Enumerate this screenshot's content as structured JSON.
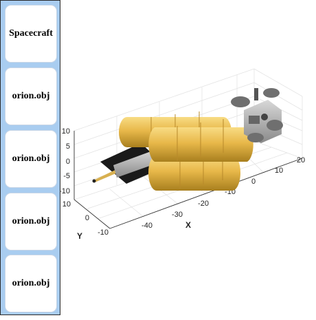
{
  "sidebar": {
    "buttons": [
      {
        "label": "Spacecraft"
      },
      {
        "label": "orion.obj"
      },
      {
        "label": "orion.obj"
      },
      {
        "label": "orion.obj"
      },
      {
        "label": "orion.obj"
      }
    ]
  },
  "plot": {
    "x_axis": {
      "label": "X",
      "ticks": [
        "-40",
        "-30",
        "-20",
        "-10",
        "0",
        "10",
        "20"
      ]
    },
    "y_axis": {
      "label": "Y",
      "ticks": [
        "10",
        "0",
        "-10"
      ]
    },
    "z_axis": {
      "ticks": [
        "10",
        "5",
        "0",
        "-5",
        "-10"
      ]
    },
    "colors": {
      "tank": "#e8b84a",
      "tank_shade": "#a87f1e",
      "panel": "#1a1a1a",
      "module": "#9a9a9a",
      "antenna": "#7a7a7a"
    }
  }
}
